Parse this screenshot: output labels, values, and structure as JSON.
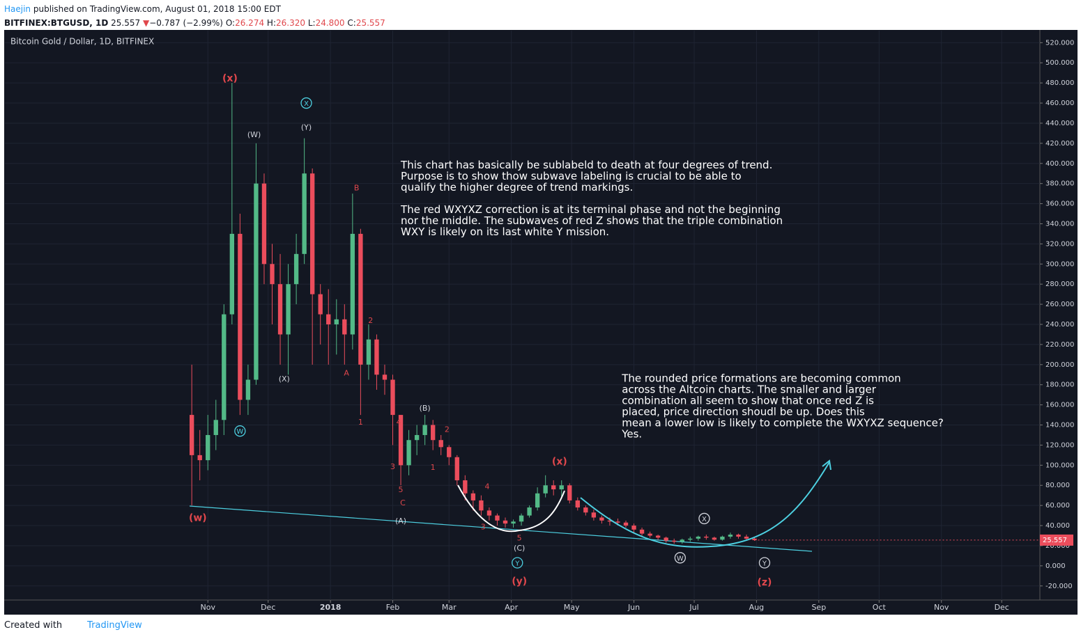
{
  "header": {
    "author": "Haejin",
    "published": "published on TradingView.com, August 01, 2018 15:00 EDT",
    "symbol": "BITFINEX:BTGUSD, 1D",
    "last": "25.557",
    "arrow": "▼",
    "change": "−0.787 (−2.99%)",
    "o_label": "O:",
    "o": "26.274",
    "h_label": "H:",
    "h": "26.320",
    "l_label": "L:",
    "l": "24.800",
    "c_label": "C:",
    "c": "25.557"
  },
  "footer": {
    "created": "Created with",
    "brand": "TradingView"
  },
  "chart_data": {
    "type": "candlestick",
    "title": "Bitcoin Gold / Dollar, 1D, BITFINEX",
    "up_color": "#53b987",
    "down_color": "#eb4d5c",
    "x": [
      23,
      27,
      31,
      35,
      39,
      43,
      47,
      51,
      55,
      59,
      63,
      67,
      71,
      75,
      79,
      83,
      87,
      91,
      95,
      99,
      103,
      107,
      111,
      115,
      119,
      123,
      127,
      131,
      135,
      139,
      143,
      147,
      151,
      155,
      159,
      163,
      167,
      171,
      175,
      179,
      183,
      187,
      191,
      195,
      199,
      203,
      207,
      211,
      215,
      219,
      223,
      227,
      231,
      235,
      239,
      243,
      247,
      251,
      255,
      259,
      263,
      267,
      271,
      275,
      279,
      283,
      287,
      291,
      295,
      299,
      303
    ],
    "open": [
      150,
      110,
      105,
      130,
      145,
      250,
      330,
      165,
      185,
      380,
      300,
      280,
      230,
      280,
      310,
      390,
      270,
      250,
      240,
      245,
      230,
      330,
      200,
      225,
      190,
      185,
      150,
      100,
      125,
      130,
      140,
      125,
      118,
      108,
      85,
      72,
      65,
      55,
      50,
      45,
      42,
      44,
      50,
      58,
      72,
      80,
      76,
      80,
      65,
      58,
      53,
      48,
      45,
      44,
      43,
      40,
      36,
      32,
      30,
      28,
      25,
      24,
      26,
      27,
      29,
      28,
      26,
      29,
      31,
      29,
      27
    ],
    "high": [
      200,
      135,
      150,
      165,
      260,
      480,
      350,
      200,
      420,
      390,
      320,
      310,
      300,
      330,
      425,
      395,
      280,
      275,
      265,
      260,
      370,
      335,
      240,
      230,
      200,
      190,
      150,
      135,
      140,
      150,
      145,
      130,
      120,
      110,
      90,
      75,
      70,
      58,
      52,
      48,
      46,
      52,
      60,
      78,
      90,
      85,
      85,
      82,
      68,
      60,
      56,
      50,
      48,
      47,
      45,
      42,
      38,
      34,
      31,
      29,
      27,
      27,
      29,
      30,
      31,
      29,
      30,
      33,
      32,
      31,
      28
    ],
    "low": [
      60,
      85,
      95,
      115,
      130,
      240,
      150,
      150,
      180,
      280,
      240,
      200,
      190,
      260,
      300,
      200,
      220,
      200,
      210,
      200,
      215,
      150,
      185,
      175,
      170,
      120,
      80,
      90,
      110,
      120,
      115,
      110,
      100,
      80,
      65,
      55,
      50,
      45,
      40,
      38,
      38,
      40,
      48,
      55,
      68,
      70,
      68,
      62,
      55,
      50,
      45,
      42,
      40,
      40,
      38,
      33,
      30,
      28,
      26,
      23,
      22,
      22,
      24,
      25,
      26,
      25,
      25,
      27,
      27,
      26,
      24.8
    ],
    "close": [
      110,
      105,
      130,
      145,
      250,
      330,
      165,
      185,
      380,
      300,
      280,
      230,
      280,
      310,
      390,
      270,
      250,
      240,
      245,
      230,
      330,
      200,
      225,
      190,
      185,
      150,
      100,
      125,
      130,
      140,
      125,
      118,
      108,
      85,
      72,
      65,
      55,
      50,
      45,
      42,
      44,
      50,
      58,
      72,
      80,
      76,
      80,
      65,
      58,
      53,
      48,
      45,
      44,
      43,
      40,
      36,
      32,
      30,
      28,
      25,
      24,
      26,
      27,
      29,
      28,
      26,
      29,
      31,
      29,
      27,
      25.557
    ],
    "xlim": [
      -70,
      445
    ],
    "xticks": [
      {
        "value": 31,
        "label": "Nov"
      },
      {
        "value": 61,
        "label": "Dec"
      },
      {
        "value": 92,
        "label": "2018"
      },
      {
        "value": 123,
        "label": "Feb"
      },
      {
        "value": 151,
        "label": "Mar"
      },
      {
        "value": 182,
        "label": "Apr"
      },
      {
        "value": 212,
        "label": "May"
      },
      {
        "value": 243,
        "label": "Jun"
      },
      {
        "value": 273,
        "label": "Jul"
      },
      {
        "value": 304,
        "label": "Aug"
      },
      {
        "value": 335,
        "label": "Sep"
      },
      {
        "value": 365,
        "label": "Oct"
      },
      {
        "value": 396,
        "label": "Nov"
      },
      {
        "value": 426,
        "label": "Dec"
      }
    ],
    "ylim": [
      -34,
      532
    ],
    "yticks": [
      {
        "value": -20,
        "label": "-20.000"
      },
      {
        "value": 0,
        "label": "0.000"
      },
      {
        "value": 20,
        "label": "20.000"
      },
      {
        "value": 40,
        "label": "40.000"
      },
      {
        "value": 60,
        "label": "60.000"
      },
      {
        "value": 80,
        "label": "80.000"
      },
      {
        "value": 100,
        "label": "100.000"
      },
      {
        "value": 120,
        "label": "120.000"
      },
      {
        "value": 140,
        "label": "140.000"
      },
      {
        "value": 160,
        "label": "160.000"
      },
      {
        "value": 180,
        "label": "180.000"
      },
      {
        "value": 200,
        "label": "200.000"
      },
      {
        "value": 220,
        "label": "220.000"
      },
      {
        "value": 240,
        "label": "240.000"
      },
      {
        "value": 260,
        "label": "260.000"
      },
      {
        "value": 280,
        "label": "280.000"
      },
      {
        "value": 300,
        "label": "300.000"
      },
      {
        "value": 320,
        "label": "320.000"
      },
      {
        "value": 340,
        "label": "340.000"
      },
      {
        "value": 360,
        "label": "360.000"
      },
      {
        "value": 380,
        "label": "380.000"
      },
      {
        "value": 400,
        "label": "400.000"
      },
      {
        "value": 420,
        "label": "420.000"
      },
      {
        "value": 440,
        "label": "440.000"
      },
      {
        "value": 460,
        "label": "460.000"
      },
      {
        "value": 480,
        "label": "480.000"
      },
      {
        "value": 500,
        "label": "500.000"
      },
      {
        "value": 520,
        "label": "520.000"
      }
    ],
    "grid": true,
    "annotations": [
      {
        "text": "(x)",
        "x": 42,
        "y": 485,
        "color": "#e0474c",
        "circled": false
      },
      {
        "text": "X",
        "x": 80,
        "y": 460,
        "color": "#4dd0e1",
        "circled": true
      },
      {
        "text": "(W)",
        "x": 54,
        "y": 429,
        "color": "#d1d4dc",
        "circled": false
      },
      {
        "text": "(Y)",
        "x": 80,
        "y": 436,
        "color": "#d1d4dc",
        "circled": false
      },
      {
        "text": "B",
        "x": 105,
        "y": 376,
        "color": "#e0474c",
        "circled": false
      },
      {
        "text": "2",
        "x": 112,
        "y": 244,
        "color": "#e0474c",
        "circled": false
      },
      {
        "text": "A",
        "x": 100,
        "y": 192,
        "color": "#e0474c",
        "circled": false
      },
      {
        "text": "1",
        "x": 107,
        "y": 143,
        "color": "#e0474c",
        "circled": false
      },
      {
        "text": "(X)",
        "x": 69,
        "y": 186,
        "color": "#d1d4dc",
        "circled": false
      },
      {
        "text": "W",
        "x": 47,
        "y": 134,
        "color": "#4dd0e1",
        "circled": true
      },
      {
        "text": "(B)",
        "x": 139,
        "y": 157,
        "color": "#d1d4dc",
        "circled": false
      },
      {
        "text": "4",
        "x": 126,
        "y": 143,
        "color": "#e0474c",
        "circled": false
      },
      {
        "text": "2",
        "x": 150,
        "y": 136,
        "color": "#e0474c",
        "circled": false
      },
      {
        "text": "1",
        "x": 143,
        "y": 98,
        "color": "#e0474c",
        "circled": false
      },
      {
        "text": "3",
        "x": 123,
        "y": 99,
        "color": "#e0474c",
        "circled": false
      },
      {
        "text": "5",
        "x": 127,
        "y": 76,
        "color": "#e0474c",
        "circled": false
      },
      {
        "text": "C",
        "x": 128,
        "y": 63,
        "color": "#e0474c",
        "circled": false
      },
      {
        "text": "(w)",
        "x": 26,
        "y": 48,
        "color": "#e0474c",
        "circled": false
      },
      {
        "text": "(A)",
        "x": 127,
        "y": 45,
        "color": "#d1d4dc",
        "circled": false
      },
      {
        "text": "4",
        "x": 170,
        "y": 79,
        "color": "#e0474c",
        "circled": false
      },
      {
        "text": "3",
        "x": 168,
        "y": 39,
        "color": "#e0474c",
        "circled": false
      },
      {
        "text": "5",
        "x": 186,
        "y": 28,
        "color": "#e0474c",
        "circled": false
      },
      {
        "text": "(C)",
        "x": 186,
        "y": 18,
        "color": "#d1d4dc",
        "circled": false
      },
      {
        "text": "Y",
        "x": 185,
        "y": 3,
        "color": "#4dd0e1",
        "circled": true
      },
      {
        "text": "(y)",
        "x": 186,
        "y": -15,
        "color": "#e0474c",
        "circled": false
      },
      {
        "text": "(x)",
        "x": 206,
        "y": 104,
        "color": "#e0474c",
        "circled": false
      },
      {
        "text": "X",
        "x": 278,
        "y": 47,
        "color": "#d1d4dc",
        "circled": true
      },
      {
        "text": "W",
        "x": 266,
        "y": 8,
        "color": "#d1d4dc",
        "circled": true
      },
      {
        "text": "Y",
        "x": 308,
        "y": 3,
        "color": "#d1d4dc",
        "circled": true
      },
      {
        "text": "(z)",
        "x": 308,
        "y": -16,
        "color": "#e0474c",
        "circled": false
      }
    ],
    "notes": [
      {
        "x": 127,
        "y": 398,
        "lines": [
          "This chart has basically be sublabeld to death at four degrees of trend.",
          "Purpose is to show thow subwave labeling is crucial to be able to",
          "qualify the higher degree of trend markings.",
          "",
          "The red WXYXZ correction is at its terminal phase and not the beginning",
          "nor the middle. The subwaves of red Z shows that the triple combination",
          "WXY is likely on its last white Y mission."
        ]
      },
      {
        "x": 237,
        "y": 186,
        "lines": [
          "The rounded price formations are becoming common",
          "across the Altcoin charts. The smaller and larger",
          "combination all seem to show that once red Z is",
          "placed, price direction shoudl be up. Does this",
          "mean a lower low is likely to complete the WXYXZ sequence?",
          "Yes."
        ]
      }
    ]
  }
}
